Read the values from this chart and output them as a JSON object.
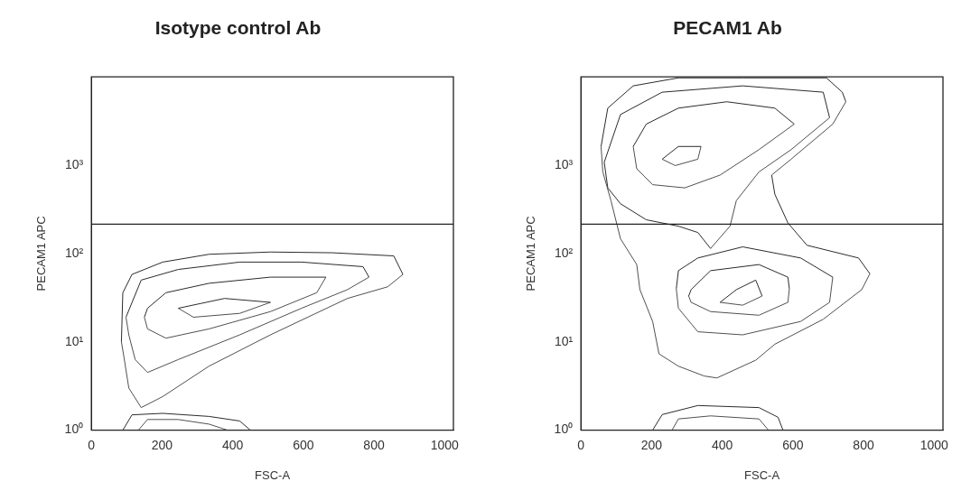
{
  "chart_data": [
    {
      "type": "line",
      "title": "Isotype control Ab",
      "xlabel": "FSC-A",
      "ylabel": "PECAM1 APC",
      "log": "y",
      "marker": "none",
      "xlim": [
        0,
        1025
      ],
      "xticks": [
        0,
        200,
        400,
        600,
        800,
        1000
      ],
      "ylim": [
        1,
        10000
      ],
      "yticks": [
        {
          "value": 1,
          "label": "10⁰"
        },
        {
          "value": 10,
          "label": "10¹"
        },
        {
          "value": 100,
          "label": "10²"
        },
        {
          "value": 1000,
          "label": "10³"
        }
      ],
      "ref_lines": [
        {
          "axis": "y",
          "value": 215
        }
      ],
      "series": [
        {
          "color": "#2b2b2b",
          "x": [
            85,
            89,
            115,
            202,
            333,
            507,
            682,
            856,
            882
          ],
          "values": [
            10,
            36,
            58,
            80,
            98,
            104,
            102,
            94,
            58
          ]
        },
        {
          "color": "#505050",
          "x": [
            85,
            92,
            106,
            141,
            202,
            333,
            507,
            725,
            839,
            882
          ],
          "values": [
            10,
            6.8,
            3.0,
            1.8,
            2.4,
            5.3,
            12,
            31,
            42,
            58
          ]
        },
        {
          "color": "#2b2b2b",
          "x": [
            98,
            141,
            246,
            420,
            595,
            769,
            786
          ],
          "values": [
            19,
            50,
            66,
            80,
            80,
            71,
            54
          ]
        },
        {
          "color": "#505050",
          "x": [
            98,
            106,
            124,
            159,
            246,
            420,
            595,
            725,
            786
          ],
          "values": [
            19,
            12,
            6.3,
            4.5,
            6.3,
            12,
            24,
            39,
            54
          ]
        },
        {
          "color": "#2b2b2b",
          "x": [
            150,
            159,
            211,
            333,
            507,
            664
          ],
          "values": [
            19,
            24,
            36,
            46,
            54,
            54
          ]
        },
        {
          "color": "#505050",
          "x": [
            150,
            159,
            211,
            333,
            507,
            638,
            664
          ],
          "values": [
            19,
            14,
            11,
            14,
            22,
            36,
            54
          ]
        },
        {
          "color": "#2b2b2b",
          "x": [
            246,
            377,
            507
          ],
          "values": [
            24,
            31,
            28
          ]
        },
        {
          "color": "#505050",
          "x": [
            246,
            289,
            420,
            507
          ],
          "values": [
            24,
            19,
            21,
            28
          ]
        },
        {
          "color": "#2b2b2b",
          "x": [
            89,
            115,
            202,
            333,
            420,
            450
          ],
          "values": [
            1,
            1.49,
            1.55,
            1.43,
            1.27,
            1
          ]
        },
        {
          "color": "#505050",
          "x": [
            133,
            159,
            246,
            333,
            385
          ],
          "values": [
            1,
            1.32,
            1.32,
            1.17,
            1
          ]
        }
      ]
    },
    {
      "type": "line",
      "title": "PECAM1 Ab",
      "xlabel": "FSC-A",
      "ylabel": "PECAM1 APC",
      "log": "y",
      "marker": "none",
      "xlim": [
        0,
        1025
      ],
      "xticks": [
        0,
        200,
        400,
        600,
        800,
        1000
      ],
      "ylim": [
        1,
        10000
      ],
      "yticks": [
        {
          "value": 1,
          "label": "10⁰"
        },
        {
          "value": 10,
          "label": "10¹"
        },
        {
          "value": 100,
          "label": "10²"
        },
        {
          "value": 1000,
          "label": "10³"
        }
      ],
      "ref_lines": [
        {
          "axis": "y",
          "value": 215
        }
      ],
      "series": [
        {
          "color": "#2b2b2b",
          "x": [
            57,
            76,
            148,
            276,
            458,
            695,
            740,
            750
          ],
          "values": [
            1630,
            4430,
            7920,
            9750,
            9750,
            9750,
            6710,
            5230
          ]
        },
        {
          "color": "#505050",
          "x": [
            540,
            595,
            713,
            750
          ],
          "values": [
            773,
            1170,
            2920,
            5230
          ]
        },
        {
          "color": "#2b2b2b",
          "x": [
            540,
            549,
            586,
            640,
            713,
            786,
            818
          ],
          "values": [
            773,
            469,
            222,
            124,
            105,
            89,
            59
          ]
        },
        {
          "color": "#505050",
          "x": [
            57,
            62,
            85,
            112,
            158,
            167,
            203,
            221,
            276,
            349,
            385,
            495,
            549,
            686,
            795,
            818
          ],
          "values": [
            1630,
            839,
            397,
            147,
            75,
            39,
            17,
            7.3,
            5.3,
            4.1,
            3.9,
            6.2,
            9.4,
            18,
            39,
            59
          ]
        },
        {
          "color": "#2b2b2b",
          "x": [
            66,
            112,
            230,
            458,
            686,
            704
          ],
          "values": [
            1080,
            3750,
            6710,
            7920,
            6710,
            3450
          ]
        },
        {
          "color": "#505050",
          "x": [
            367,
            422,
            440,
            504,
            595,
            704
          ],
          "values": [
            114,
            204,
            397,
            839,
            1500,
            3450
          ]
        },
        {
          "color": "#2b2b2b",
          "x": [
            66,
            76,
            112,
            185,
            276,
            331,
            367
          ],
          "values": [
            1080,
            554,
            366,
            241,
            204,
            173,
            114
          ]
        },
        {
          "color": "#2b2b2b",
          "x": [
            148,
            185,
            276,
            413,
            549,
            604
          ],
          "values": [
            1630,
            2920,
            4430,
            5230,
            4430,
            2920
          ]
        },
        {
          "color": "#505050",
          "x": [
            148,
            158,
            203,
            294,
            394,
            504,
            604
          ],
          "values": [
            1630,
            912,
            602,
            554,
            773,
            1500,
            2920
          ]
        },
        {
          "color": "#2b2b2b",
          "x": [
            230,
            276,
            340
          ],
          "values": [
            1170,
            1630,
            1630
          ]
        },
        {
          "color": "#505050",
          "x": [
            230,
            267,
            331,
            340
          ],
          "values": [
            1170,
            991,
            1170,
            1630
          ]
        },
        {
          "color": "#2b2b2b",
          "x": [
            270,
            276,
            331,
            458,
            622,
            713
          ],
          "values": [
            40,
            64,
            89,
            119,
            89,
            54
          ]
        },
        {
          "color": "#505050",
          "x": [
            270,
            276,
            331,
            458,
            622,
            704,
            713
          ],
          "values": [
            40,
            24,
            13,
            12,
            17,
            28,
            54
          ]
        },
        {
          "color": "#2b2b2b",
          "x": [
            305,
            312,
            367,
            504,
            586,
            590
          ],
          "values": [
            33,
            39,
            64,
            75,
            54,
            40
          ]
        },
        {
          "color": "#505050",
          "x": [
            305,
            312,
            367,
            504,
            586,
            590
          ],
          "values": [
            33,
            28,
            22,
            20,
            28,
            40
          ]
        },
        {
          "color": "#2b2b2b",
          "x": [
            394,
            440,
            495,
            513
          ],
          "values": [
            28,
            39,
            50,
            33
          ]
        },
        {
          "color": "#505050",
          "x": [
            394,
            458,
            513
          ],
          "values": [
            28,
            26,
            33
          ]
        },
        {
          "color": "#2b2b2b",
          "x": [
            203,
            230,
            331,
            504,
            558,
            572
          ],
          "values": [
            1,
            1.5,
            1.9,
            1.8,
            1.4,
            1
          ]
        },
        {
          "color": "#505050",
          "x": [
            258,
            276,
            367,
            504,
            531
          ],
          "values": [
            1,
            1.34,
            1.45,
            1.34,
            1
          ]
        }
      ]
    }
  ]
}
